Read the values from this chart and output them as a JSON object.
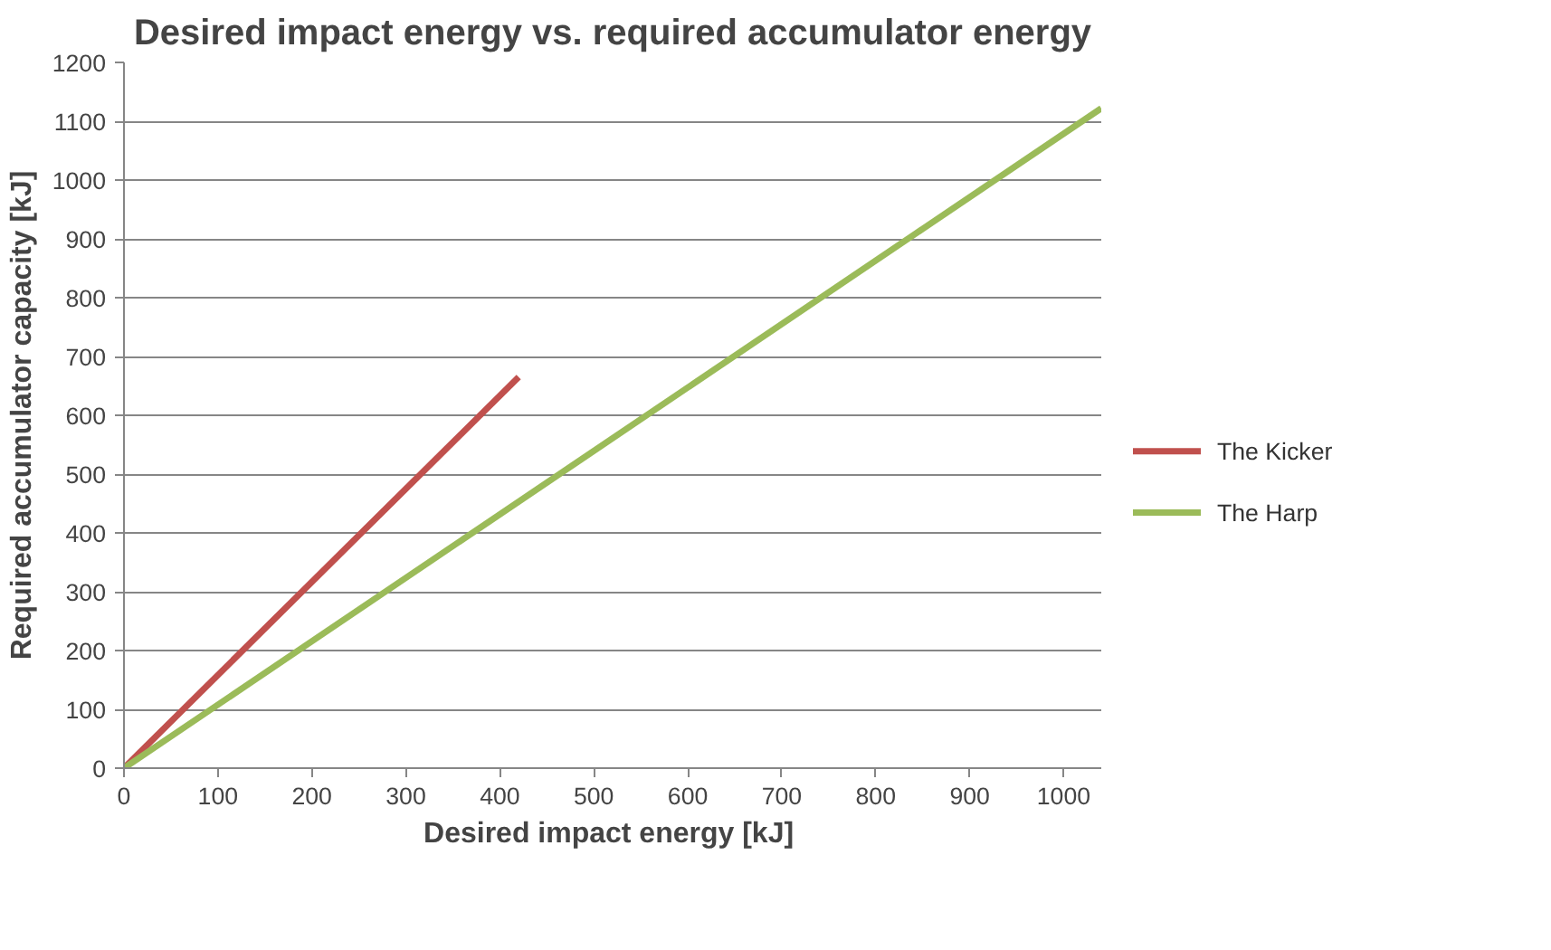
{
  "chart_data": {
    "type": "line",
    "title": "Desired impact energy vs. required accumulator energy",
    "xlabel": "Desired impact energy  [kJ]",
    "ylabel": "Required accumulator capacity [kJ]",
    "series": [
      {
        "name": "The Kicker",
        "color": "#c0504d",
        "x": [
          0,
          420
        ],
        "values": [
          0,
          665
        ]
      },
      {
        "name": "The Harp",
        "color": "#9bbb59",
        "x": [
          0,
          1040
        ],
        "values": [
          0,
          1122
        ]
      }
    ],
    "xlim": [
      0,
      1040
    ],
    "xticks": [
      0,
      100,
      200,
      300,
      400,
      500,
      600,
      700,
      800,
      900,
      1000
    ],
    "ylim": [
      0,
      1200
    ],
    "yticks": [
      0,
      100,
      200,
      300,
      400,
      500,
      600,
      700,
      800,
      900,
      1000,
      1100,
      1200
    ],
    "grid": "y",
    "legend": "right",
    "marker": "none",
    "line_style": "solid"
  }
}
